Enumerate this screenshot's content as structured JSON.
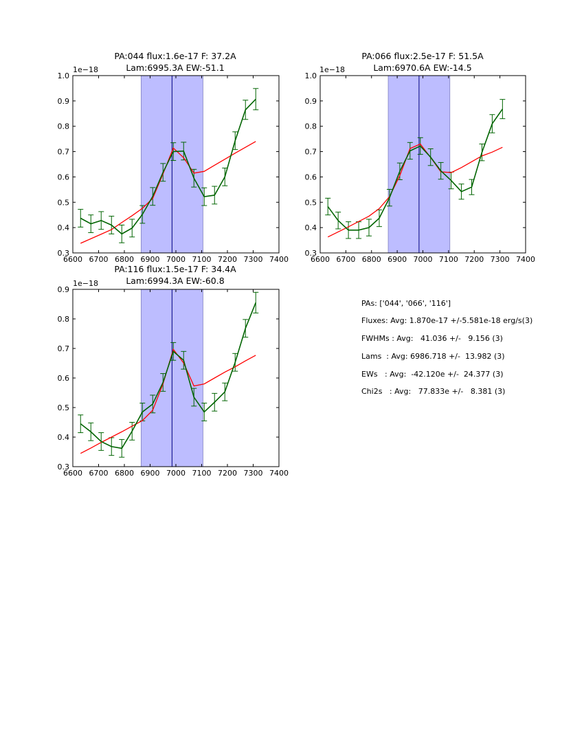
{
  "chart_data": [
    {
      "type": "line",
      "title_line1": "PA:044 flux:1.6e-17 F: 37.2A",
      "title_line2": "Lam:6995.3A EW:-51.1",
      "y_offset_label": "1e−18",
      "xlim": [
        6600,
        7400
      ],
      "ylim": [
        0.3,
        1.0
      ],
      "xticks": [
        "6600",
        "6700",
        "6800",
        "6900",
        "7000",
        "7100",
        "7200",
        "7300",
        "7400"
      ],
      "yticks": [
        "0.3",
        "0.4",
        "0.5",
        "0.6",
        "0.7",
        "0.8",
        "0.9",
        "1.0"
      ],
      "band": [
        6865,
        7105
      ],
      "center_line": 6985,
      "series": [
        {
          "color": "#006400",
          "x": [
            6630,
            6670,
            6710,
            6750,
            6790,
            6830,
            6870,
            6910,
            6950,
            6990,
            7030,
            7070,
            7110,
            7150,
            7190,
            7230,
            7270,
            7310
          ],
          "y": [
            0.437,
            0.415,
            0.428,
            0.41,
            0.375,
            0.398,
            0.452,
            0.523,
            0.618,
            0.7,
            0.702,
            0.595,
            0.522,
            0.528,
            0.6,
            0.743,
            0.865,
            0.907
          ],
          "err": [
            0.035,
            0.035,
            0.035,
            0.035,
            0.035,
            0.035,
            0.035,
            0.035,
            0.035,
            0.035,
            0.035,
            0.035,
            0.035,
            0.035,
            0.035,
            0.035,
            0.038,
            0.042
          ]
        },
        {
          "color": "#ff0000",
          "x": [
            6630,
            6670,
            6710,
            6750,
            6790,
            6830,
            6870,
            6910,
            6950,
            6990,
            7030,
            7070,
            7110,
            7150,
            7190,
            7230,
            7270,
            7310
          ],
          "y": [
            0.338,
            0.356,
            0.374,
            0.392,
            0.42,
            0.447,
            0.476,
            0.515,
            0.612,
            0.714,
            0.676,
            0.615,
            0.622,
            0.646,
            0.67,
            0.694,
            0.717,
            0.74
          ]
        }
      ]
    },
    {
      "type": "line",
      "title_line1": "PA:066 flux:2.5e-17 F: 51.5A",
      "title_line2": "Lam:6970.6A EW:-14.5",
      "y_offset_label": "1e−18",
      "xlim": [
        6600,
        7400
      ],
      "ylim": [
        0.3,
        1.0
      ],
      "xticks": [
        "6600",
        "6700",
        "6800",
        "6900",
        "7000",
        "7100",
        "7200",
        "7300",
        "7400"
      ],
      "yticks": [
        "0.3",
        "0.4",
        "0.5",
        "0.6",
        "0.7",
        "0.8",
        "0.9",
        "1.0"
      ],
      "band": [
        6865,
        7105
      ],
      "center_line": 6985,
      "series": [
        {
          "color": "#006400",
          "x": [
            6630,
            6670,
            6710,
            6750,
            6790,
            6830,
            6870,
            6910,
            6950,
            6990,
            7030,
            7070,
            7110,
            7150,
            7190,
            7230,
            7270,
            7310
          ],
          "y": [
            0.483,
            0.428,
            0.39,
            0.39,
            0.4,
            0.437,
            0.518,
            0.622,
            0.703,
            0.722,
            0.678,
            0.624,
            0.586,
            0.542,
            0.56,
            0.697,
            0.81,
            0.868
          ],
          "err": [
            0.033,
            0.033,
            0.033,
            0.033,
            0.033,
            0.033,
            0.033,
            0.033,
            0.033,
            0.033,
            0.033,
            0.033,
            0.033,
            0.03,
            0.03,
            0.033,
            0.036,
            0.038
          ]
        },
        {
          "color": "#ff0000",
          "x": [
            6630,
            6670,
            6710,
            6750,
            6790,
            6830,
            6870,
            6910,
            6950,
            6990,
            7030,
            7070,
            7110,
            7150,
            7190,
            7230,
            7270,
            7310
          ],
          "y": [
            0.363,
            0.383,
            0.403,
            0.424,
            0.445,
            0.475,
            0.522,
            0.605,
            0.712,
            0.73,
            0.677,
            0.62,
            0.617,
            0.637,
            0.66,
            0.683,
            0.698,
            0.717
          ]
        }
      ]
    },
    {
      "type": "line",
      "title_line1": "PA:116 flux:1.5e-17 F: 34.4A",
      "title_line2": "Lam:6994.3A EW:-60.8",
      "y_offset_label": "1e−18",
      "xlim": [
        6600,
        7400
      ],
      "ylim": [
        0.3,
        0.9
      ],
      "xticks": [
        "6600",
        "6700",
        "6800",
        "6900",
        "7000",
        "7100",
        "7200",
        "7300",
        "7400"
      ],
      "yticks": [
        "0.3",
        "0.4",
        "0.5",
        "0.6",
        "0.7",
        "0.8",
        "0.9"
      ],
      "band": [
        6865,
        7105
      ],
      "center_line": 6985,
      "series": [
        {
          "color": "#006400",
          "x": [
            6630,
            6670,
            6710,
            6750,
            6790,
            6830,
            6870,
            6910,
            6950,
            6990,
            7030,
            7070,
            7110,
            7150,
            7190,
            7230,
            7270,
            7310
          ],
          "y": [
            0.445,
            0.418,
            0.385,
            0.368,
            0.362,
            0.42,
            0.485,
            0.512,
            0.585,
            0.69,
            0.66,
            0.535,
            0.485,
            0.518,
            0.553,
            0.653,
            0.768,
            0.855
          ],
          "err": [
            0.03,
            0.03,
            0.03,
            0.03,
            0.03,
            0.03,
            0.03,
            0.03,
            0.03,
            0.03,
            0.03,
            0.03,
            0.03,
            0.03,
            0.03,
            0.03,
            0.03,
            0.035
          ]
        },
        {
          "color": "#ff0000",
          "x": [
            6630,
            6670,
            6710,
            6750,
            6790,
            6830,
            6870,
            6910,
            6950,
            6990,
            7030,
            7070,
            7110,
            7150,
            7190,
            7230,
            7270,
            7310
          ],
          "y": [
            0.345,
            0.363,
            0.382,
            0.4,
            0.418,
            0.437,
            0.456,
            0.491,
            0.58,
            0.697,
            0.651,
            0.573,
            0.58,
            0.6,
            0.62,
            0.638,
            0.658,
            0.677
          ]
        }
      ]
    }
  ],
  "summary": {
    "lines": [
      "PAs: ['044', '066', '116']",
      "Fluxes: Avg: 1.870e-17 +/-5.581e-18 erg/s(3)",
      "FWHMs : Avg:   41.036 +/-   9.156 (3)",
      "Lams  : Avg: 6986.718 +/-  13.982 (3)",
      "EWs   : Avg:  -42.120e +/-  24.377 (3)",
      "Chi2s   : Avg:   77.833e +/-   8.381 (3)"
    ]
  }
}
